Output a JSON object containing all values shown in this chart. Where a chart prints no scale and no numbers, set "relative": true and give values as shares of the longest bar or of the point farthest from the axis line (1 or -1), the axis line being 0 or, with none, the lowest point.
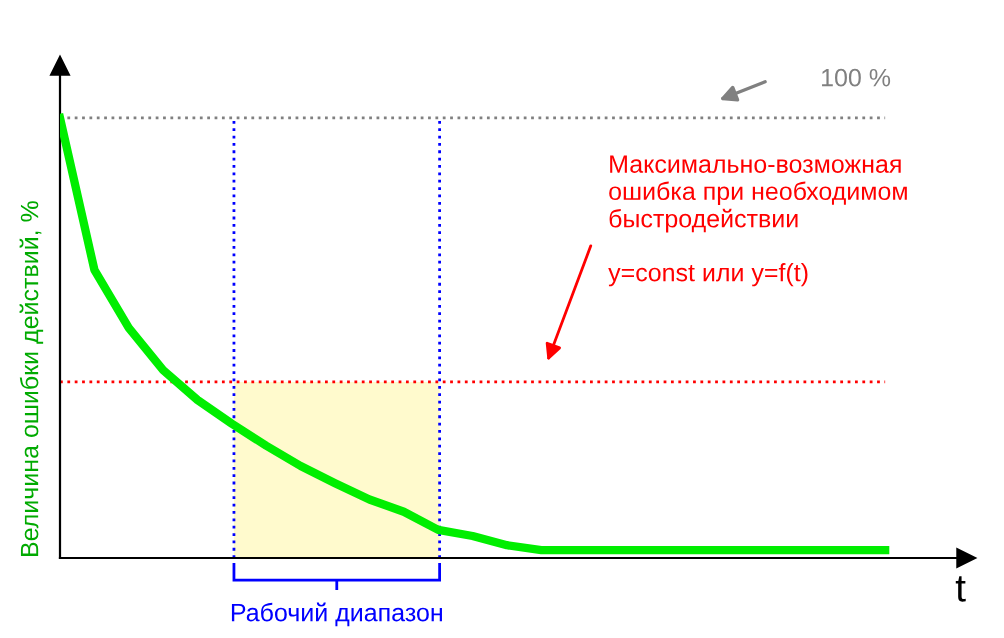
{
  "chart_data": {
    "type": "line",
    "relative": true,
    "xlabel": "t",
    "ylabel": "Величина ошибки действий, %",
    "categories": [
      null,
      null,
      null,
      null,
      null,
      null,
      null,
      null,
      null,
      null,
      null,
      null,
      null,
      null,
      null,
      null,
      null,
      null,
      null,
      null,
      null,
      null,
      null,
      null,
      null
    ],
    "marker": "none",
    "line_style": "solid",
    "series": [
      {
        "color": "#00ee00",
        "values": [
          1.0,
          0.655,
          0.523,
          0.427,
          0.359,
          0.305,
          0.255,
          0.209,
          0.17,
          0.133,
          0.105,
          0.064,
          0.05,
          0.029,
          0.018,
          0.018,
          0.018,
          0.018,
          0.018,
          0.018,
          0.018,
          0.018,
          0.018,
          0.018,
          0.018
        ]
      }
    ],
    "ref_lines": [
      {
        "axis": "y",
        "value": 1.0,
        "label": "100 %",
        "color": "#808080",
        "line_style": "dotted"
      },
      {
        "axis": "y",
        "value": 0.4,
        "color": "#ff0000",
        "line_style": "dotted"
      }
    ],
    "annotations": [
      "Максимально-возможная\nошибка при необходимом\nбыстродействии\n\ny=const или y=f(t)",
      "Рабочий диапазон"
    ]
  }
}
